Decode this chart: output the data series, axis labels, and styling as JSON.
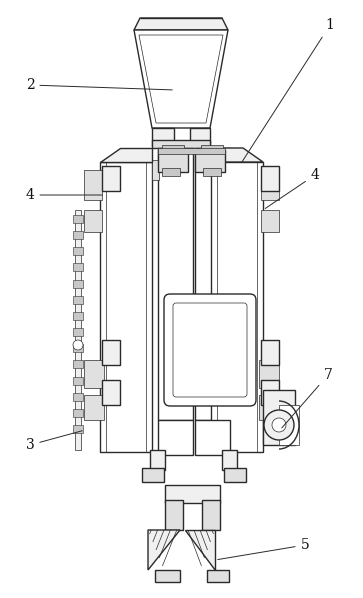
{
  "bg_color": "#ffffff",
  "line_color": "#2a2a2a",
  "lw_main": 1.0,
  "lw_thin": 0.5,
  "fig_width": 3.63,
  "fig_height": 5.98,
  "label_fontsize": 10,
  "label_color": "#111111"
}
